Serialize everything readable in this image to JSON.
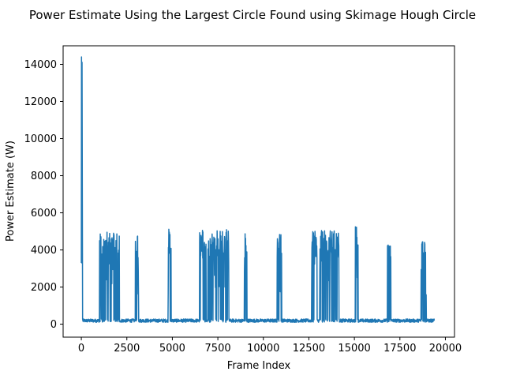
{
  "chart_data": {
    "type": "line",
    "title": "Power Estimate Using the Largest Circle Found using Skimage Hough Circle",
    "xlabel": "Frame Index",
    "ylabel": "Power Estimate (W)",
    "xlim": [
      -1000,
      20500
    ],
    "ylim": [
      -700,
      15000
    ],
    "xticks": [
      0,
      2500,
      5000,
      7500,
      10000,
      12500,
      15000,
      17500,
      20000
    ],
    "xtick_labels": [
      "0",
      "2500",
      "5000",
      "7500",
      "10000",
      "12500",
      "15000",
      "17500",
      "20000"
    ],
    "yticks": [
      0,
      2000,
      4000,
      6000,
      8000,
      10000,
      12000,
      14000
    ],
    "ytick_labels": [
      "0",
      "2000",
      "4000",
      "6000",
      "8000",
      "10000",
      "12000",
      "14000"
    ],
    "grid": false,
    "line_color": "#1f77b4",
    "baseline": {
      "x_start": 0,
      "x_end": 19400,
      "y_low": 100,
      "y_high": 280
    },
    "spike": {
      "x": 0,
      "y_low": 3300,
      "y_peak": 14400
    },
    "bursts": [
      {
        "x_start": 1000,
        "x_end": 2100,
        "peak": 5000
      },
      {
        "x_start": 2950,
        "x_end": 3150,
        "peak": 4950
      },
      {
        "x_start": 4750,
        "x_end": 4950,
        "peak": 5150
      },
      {
        "x_start": 6500,
        "x_end": 6850,
        "peak": 5100
      },
      {
        "x_start": 6950,
        "x_end": 8100,
        "peak": 5100
      },
      {
        "x_start": 8950,
        "x_end": 9100,
        "peak": 4950
      },
      {
        "x_start": 10750,
        "x_end": 11000,
        "peak": 4950
      },
      {
        "x_start": 12650,
        "x_end": 12950,
        "peak": 5000
      },
      {
        "x_start": 13100,
        "x_end": 14150,
        "peak": 5050
      },
      {
        "x_start": 15050,
        "x_end": 15200,
        "peak": 5300
      },
      {
        "x_start": 16800,
        "x_end": 17000,
        "peak": 4900
      },
      {
        "x_start": 18650,
        "x_end": 18950,
        "peak": 5000
      }
    ]
  }
}
